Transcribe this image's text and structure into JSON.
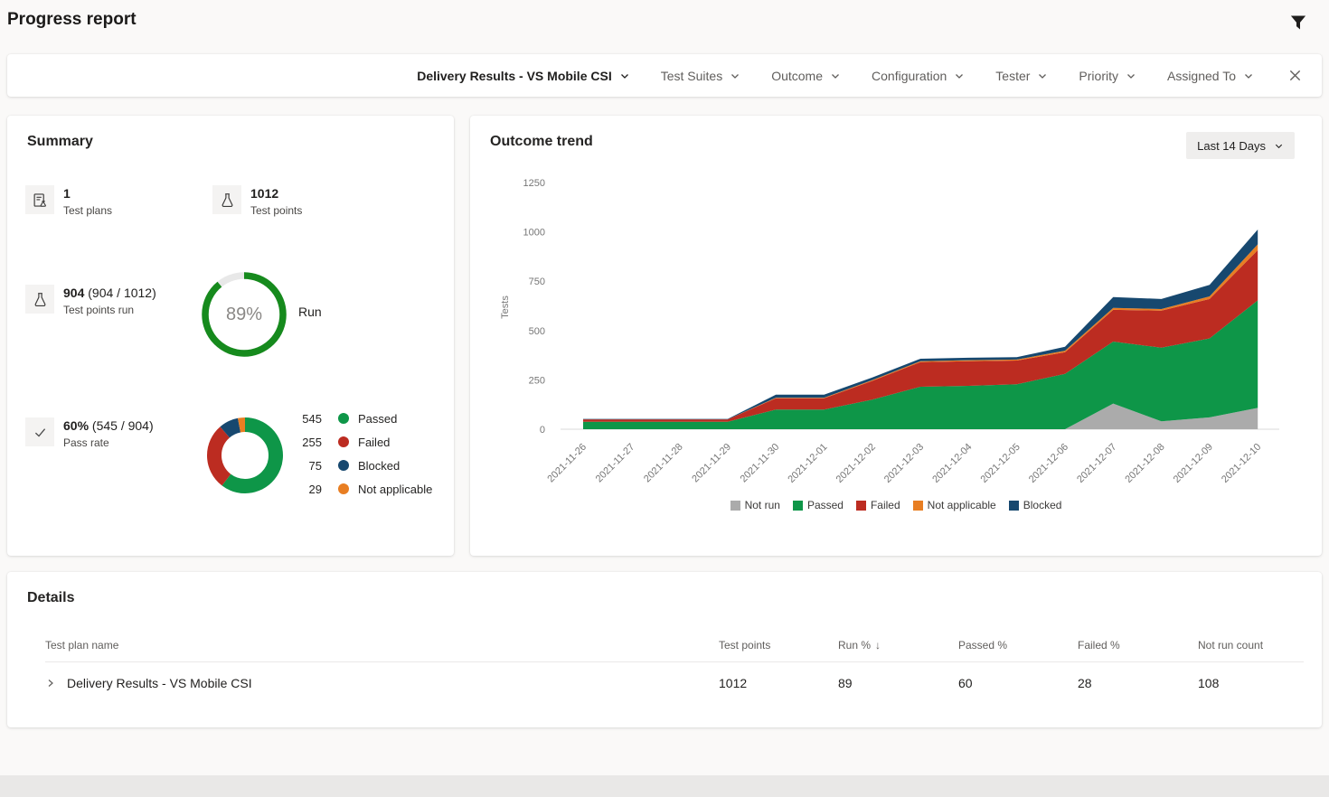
{
  "header": {
    "title": "Progress report"
  },
  "filter_bar": {
    "primary": "Delivery Results - VS Mobile CSI",
    "filters": [
      "Test Suites",
      "Outcome",
      "Configuration",
      "Tester",
      "Priority",
      "Assigned To"
    ]
  },
  "summary": {
    "title": "Summary",
    "stats": [
      {
        "icon": "test-plan-icon",
        "value": "1",
        "suffix": "",
        "label": "Test plans"
      },
      {
        "icon": "flask-icon",
        "value": "1012",
        "suffix": "",
        "label": "Test points"
      },
      {
        "icon": "flask-icon",
        "value": "904",
        "suffix": " (904 / 1012)",
        "label": "Test points run"
      },
      {
        "icon": "check-icon",
        "value": "60%",
        "suffix": " (545 / 904)",
        "label": "Pass rate"
      }
    ],
    "run_ring": {
      "percent": 89,
      "label": "89%",
      "caption": "Run",
      "color": "#168A1D",
      "track": "#E8E8E8"
    },
    "outcome_donut": {
      "segments": [
        {
          "label": "Passed",
          "value": 545,
          "color": "#0E9648"
        },
        {
          "label": "Failed",
          "value": 255,
          "color": "#BC2C21"
        },
        {
          "label": "Blocked",
          "value": 75,
          "color": "#17486F"
        },
        {
          "label": "Not applicable",
          "value": 29,
          "color": "#E87E22"
        }
      ]
    }
  },
  "trend": {
    "title": "Outcome trend",
    "range_button": "Last 14 Days"
  },
  "chart_data": {
    "type": "area",
    "title": "Outcome trend",
    "xlabel": "",
    "ylabel": "Tests",
    "ylim": [
      0,
      1250
    ],
    "yticks": [
      0,
      250,
      500,
      750,
      1000,
      1250
    ],
    "grid": false,
    "legend_position": "bottom",
    "stacked": true,
    "x": [
      "2021-11-26",
      "2021-11-27",
      "2021-11-28",
      "2021-11-29",
      "2021-11-30",
      "2021-12-01",
      "2021-12-02",
      "2021-12-03",
      "2021-12-04",
      "2021-12-05",
      "2021-12-06",
      "2021-12-07",
      "2021-12-08",
      "2021-12-09",
      "2021-12-10"
    ],
    "series": [
      {
        "name": "Not run",
        "color": "#ABABAB",
        "values": [
          0,
          0,
          0,
          0,
          0,
          0,
          0,
          0,
          0,
          0,
          0,
          130,
          40,
          60,
          108
        ]
      },
      {
        "name": "Passed",
        "color": "#0E9648",
        "values": [
          38,
          38,
          38,
          38,
          100,
          100,
          150,
          215,
          220,
          228,
          280,
          314,
          373,
          400,
          545
        ]
      },
      {
        "name": "Failed",
        "color": "#BC2C21",
        "values": [
          12,
          12,
          12,
          12,
          57,
          57,
          95,
          125,
          125,
          120,
          110,
          161,
          188,
          200,
          255
        ]
      },
      {
        "name": "Not applicable",
        "color": "#E87E22",
        "values": [
          0,
          0,
          0,
          0,
          3,
          3,
          4,
          5,
          5,
          5,
          8,
          10,
          8,
          13,
          29
        ]
      },
      {
        "name": "Blocked",
        "color": "#17486F",
        "values": [
          2,
          2,
          2,
          2,
          15,
          15,
          13,
          12,
          12,
          12,
          20,
          55,
          51,
          58,
          75
        ]
      }
    ]
  },
  "details": {
    "title": "Details",
    "columns": [
      "Test plan name",
      "Test points",
      "Run %",
      "Passed %",
      "Failed %",
      "Not run count"
    ],
    "sort_indicator": "↓",
    "rows": [
      {
        "name": "Delivery Results - VS Mobile CSI",
        "test_points": "1012",
        "run": "89",
        "passed": "60",
        "failed": "28",
        "not_run": "108"
      }
    ]
  }
}
